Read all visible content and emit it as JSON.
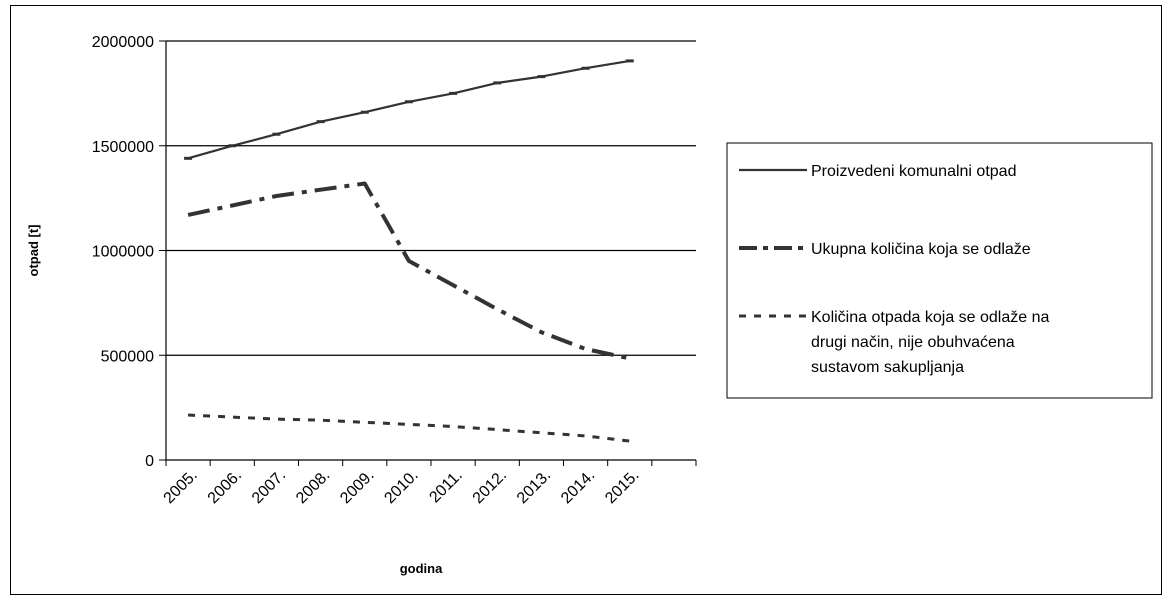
{
  "chart_data": {
    "type": "line",
    "title": "",
    "xlabel": "godina",
    "ylabel": "otpad [t]",
    "categories": [
      "2005.",
      "2006.",
      "2007.",
      "2008.",
      "2009.",
      "2010.",
      "2011.",
      "2012.",
      "2013.",
      "2014.",
      "2015."
    ],
    "ylim": [
      0,
      2000000
    ],
    "yticks": [
      "0",
      "500000",
      "1000000",
      "1500000",
      "2000000"
    ],
    "grid": "horizontal",
    "legend_position": "right",
    "series": [
      {
        "name": "Proizvedeni komunalni otpad",
        "style": "solid",
        "color": "#333333",
        "values": [
          1440000,
          1500000,
          1555000,
          1615000,
          1660000,
          1710000,
          1750000,
          1800000,
          1830000,
          1870000,
          1905000
        ]
      },
      {
        "name": "Ukupna količina koja se odlaže",
        "style": "dash-dot",
        "color": "#333333",
        "values": [
          1170000,
          1215000,
          1260000,
          1290000,
          1320000,
          950000,
          835000,
          720000,
          610000,
          530000,
          485000
        ]
      },
      {
        "name": "Količina otpada koja se odlaže na drugi način, nije obuhvaćena sustavom sakupljanja",
        "legend_lines": [
          "Količina otpada koja se odlaže na",
          "drugi način, nije obuhvaćena",
          "sustavom sakupljanja"
        ],
        "style": "dotted",
        "color": "#333333",
        "values": [
          215000,
          205000,
          195000,
          190000,
          180000,
          170000,
          160000,
          145000,
          130000,
          115000,
          90000
        ]
      }
    ]
  }
}
